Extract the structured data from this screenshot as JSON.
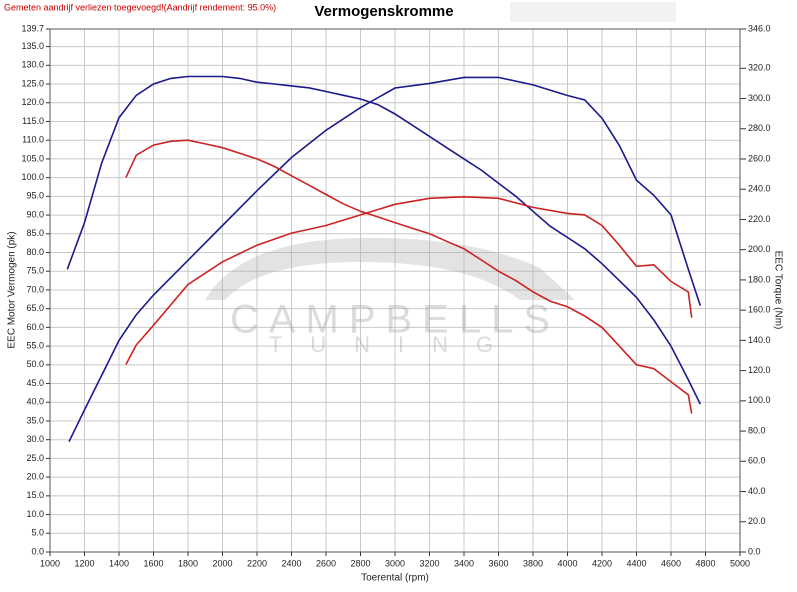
{
  "chart_data": {
    "type": "line",
    "title": "Vermogenskromme",
    "subtitle": "Gemeten aandrijf verliezen toegevoegd!(Aandrijf rendement: 95.0%)",
    "x_label": "Toerental (rpm)",
    "y_label": "EEC Motor Vermogen (pk)",
    "y2_label": "EEC Torque (Nm)",
    "annotations": [
      "CAMPBELLS",
      "TUNING"
    ],
    "grid": true,
    "xlim": [
      1000,
      5000
    ],
    "xticks": [
      1000,
      1200,
      1400,
      1600,
      1800,
      2000,
      2200,
      2400,
      2600,
      2800,
      3000,
      3200,
      3400,
      3600,
      3800,
      4000,
      4200,
      4400,
      4600,
      4800,
      5000
    ],
    "ylim": [
      0,
      139.7
    ],
    "yticks": [
      {
        "value": 0,
        "label": "0.0"
      },
      {
        "value": 5,
        "label": "5.0"
      },
      {
        "value": 10,
        "label": "10.0"
      },
      {
        "value": 15,
        "label": "15.0"
      },
      {
        "value": 20,
        "label": "20.0"
      },
      {
        "value": 25,
        "label": "25.0"
      },
      {
        "value": 30,
        "label": "30.0"
      },
      {
        "value": 35,
        "label": "35.0"
      },
      {
        "value": 40,
        "label": "40.0"
      },
      {
        "value": 45,
        "label": "45.0"
      },
      {
        "value": 50,
        "label": "50.0"
      },
      {
        "value": 55,
        "label": "55.0"
      },
      {
        "value": 60,
        "label": "60.0"
      },
      {
        "value": 65,
        "label": "65.0"
      },
      {
        "value": 70,
        "label": "70.0"
      },
      {
        "value": 75,
        "label": "75.0"
      },
      {
        "value": 80,
        "label": "80.0"
      },
      {
        "value": 85,
        "label": "85.0"
      },
      {
        "value": 90,
        "label": "90.0"
      },
      {
        "value": 95,
        "label": "95.0"
      },
      {
        "value": 100,
        "label": "100.0"
      },
      {
        "value": 105,
        "label": "105.0"
      },
      {
        "value": 110,
        "label": "110.0"
      },
      {
        "value": 115,
        "label": "115.0"
      },
      {
        "value": 120,
        "label": "120.0"
      },
      {
        "value": 125,
        "label": "125.0"
      },
      {
        "value": 130,
        "label": "130.0"
      },
      {
        "value": 135,
        "label": "135.0"
      },
      139.7
    ],
    "y2lim": [
      0,
      346
    ],
    "y2ticks": [
      {
        "value": 0,
        "label": "0.0"
      },
      {
        "value": 20,
        "label": "20.0"
      },
      {
        "value": 40,
        "label": "40.0"
      },
      {
        "value": 60,
        "label": "60.0"
      },
      {
        "value": 80,
        "label": "80.0"
      },
      {
        "value": 100,
        "label": "100.0"
      },
      {
        "value": 120,
        "label": "120.0"
      },
      {
        "value": 140,
        "label": "140.0"
      },
      {
        "value": 160,
        "label": "160.0"
      },
      {
        "value": 180,
        "label": "180.0"
      },
      {
        "value": 200,
        "label": "200.0"
      },
      {
        "value": 220,
        "label": "220.0"
      },
      {
        "value": 240,
        "label": "240.0"
      },
      {
        "value": 260,
        "label": "260.0"
      },
      {
        "value": 280,
        "label": "280.0"
      },
      {
        "value": 300,
        "label": "300.0"
      },
      {
        "value": 320,
        "label": "320.0"
      },
      {
        "value": 346,
        "label": "346.0"
      }
    ],
    "series": [
      {
        "color": "#1a1a8c",
        "axis": "y",
        "x": [
          1100,
          1200,
          1300,
          1400,
          1500,
          1600,
          1700,
          1800,
          1900,
          2000,
          2100,
          2200,
          2300,
          2400,
          2500,
          2600,
          2700,
          2800,
          2900,
          3000,
          3100,
          3200,
          3300,
          3400,
          3500,
          3600,
          3700,
          3800,
          3900,
          4000,
          4100,
          4200,
          4300,
          4400,
          4500,
          4600,
          4700,
          4770
        ],
        "values": [
          75.5,
          88,
          104,
          116,
          122,
          125,
          126.5,
          127,
          127,
          127,
          126.5,
          125.5,
          125,
          124.5,
          124,
          123,
          122,
          121,
          119.5,
          117,
          114,
          111,
          108,
          105,
          102,
          98.5,
          95,
          91,
          87,
          84,
          81,
          77,
          72.5,
          68,
          62,
          55,
          46,
          39.5
        ]
      },
      {
        "color": "#1a1a8c",
        "axis": "y2",
        "x": [
          1110,
          1200,
          1300,
          1400,
          1500,
          1600,
          1800,
          2000,
          2200,
          2400,
          2600,
          2800,
          3000,
          3200,
          3400,
          3600,
          3800,
          4000,
          4100,
          4200,
          4300,
          4400,
          4500,
          4600,
          4700,
          4770
        ],
        "values": [
          73,
          94,
          117,
          140,
          157,
          170,
          193,
          216,
          239,
          261,
          279,
          294,
          307,
          310,
          314,
          314,
          309,
          302,
          299,
          287,
          269,
          246,
          236,
          223,
          187,
          163
        ]
      },
      {
        "color": "#cc2222",
        "axis": "y",
        "x": [
          1440,
          1500,
          1600,
          1700,
          1800,
          1900,
          2000,
          2100,
          2200,
          2300,
          2400,
          2500,
          2600,
          2700,
          2800,
          2900,
          3000,
          3100,
          3200,
          3300,
          3400,
          3500,
          3600,
          3700,
          3800,
          3900,
          4000,
          4100,
          4200,
          4300,
          4400,
          4500,
          4600,
          4700,
          4720
        ],
        "values": [
          100,
          106,
          108.7,
          109.7,
          110,
          109,
          108,
          106.5,
          105,
          103,
          100.5,
          98,
          95.5,
          93,
          91,
          89.5,
          88,
          86.5,
          85,
          83,
          81,
          78,
          75,
          72.5,
          69.5,
          67,
          65.5,
          63,
          60,
          55,
          50,
          49,
          45.5,
          42,
          37
        ]
      },
      {
        "color": "#cc2222",
        "axis": "y2",
        "x": [
          1440,
          1500,
          1600,
          1800,
          2000,
          2200,
          2400,
          2600,
          2800,
          3000,
          3200,
          3400,
          3600,
          3800,
          4000,
          4100,
          4200,
          4300,
          4400,
          4500,
          4600,
          4700,
          4720
        ],
        "values": [
          124,
          137,
          150,
          177,
          192,
          203,
          211,
          216,
          223,
          230,
          234,
          235,
          234,
          228,
          224,
          223,
          216,
          203,
          189,
          190,
          179,
          172,
          155
        ]
      }
    ]
  }
}
